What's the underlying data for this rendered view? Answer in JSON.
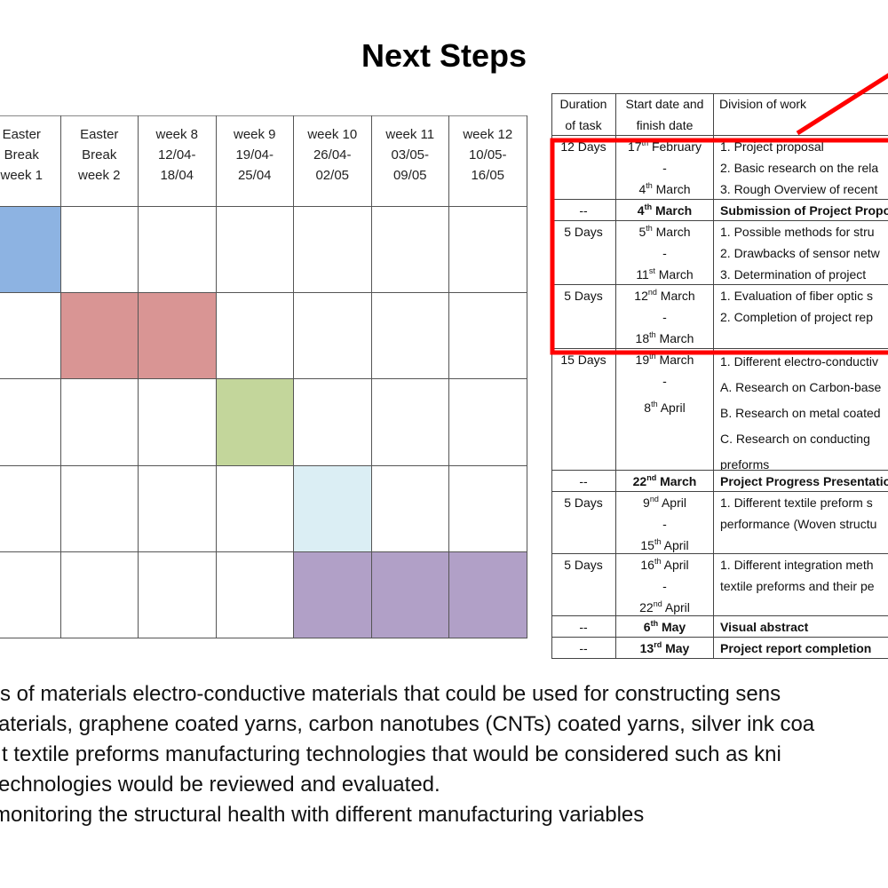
{
  "title": "Next Steps",
  "gantt": {
    "headers": [
      [
        "Easter",
        "Break",
        "week 1"
      ],
      [
        "Easter",
        "Break",
        "week 2"
      ],
      [
        "week 8",
        "12/04-",
        "18/04"
      ],
      [
        "week 9",
        "19/04-",
        "25/04"
      ],
      [
        "week 10",
        "26/04-",
        "02/05"
      ],
      [
        "week 11",
        "03/05-",
        "09/05"
      ],
      [
        "week 12",
        "10/05-",
        "16/05"
      ]
    ],
    "rows": [
      [
        "#8db3e2",
        null,
        null,
        null,
        null,
        null,
        null
      ],
      [
        null,
        "#d99594",
        "#d99594",
        null,
        null,
        null,
        null
      ],
      [
        null,
        null,
        null,
        "#c3d69b",
        null,
        null,
        null
      ],
      [
        null,
        null,
        null,
        null,
        "#dbeef4",
        null,
        null
      ],
      [
        null,
        null,
        null,
        null,
        "#b1a0c7",
        "#b1a0c7",
        "#b1a0c7"
      ]
    ]
  },
  "schedule": {
    "headers": [
      [
        "Duration",
        "of task"
      ],
      [
        "Start date and",
        "finish date"
      ],
      [
        "Division of work"
      ]
    ],
    "rows": [
      {
        "duration": "12 Days",
        "dates": [
          "17th February",
          "-",
          "4th March"
        ],
        "work": [
          "1. Project proposal",
          "2. Basic research on the rela",
          "3. Rough Overview of recent"
        ]
      },
      {
        "duration": "--",
        "dates": [
          "4th March"
        ],
        "work": [
          "Submission of Project Propo"
        ],
        "bold": true
      },
      {
        "duration": "5 Days",
        "dates": [
          "5th March",
          "-",
          "11st March"
        ],
        "work": [
          "1. Possible methods for stru",
          "2. Drawbacks of sensor netw",
          "3. Determination of project"
        ]
      },
      {
        "duration": "5 Days",
        "dates": [
          "12nd March",
          "-",
          "18th March"
        ],
        "work": [
          "1. Evaluation of fiber optic s",
          "2. Completion of project rep"
        ]
      },
      {
        "duration": "15 Days",
        "dates": [
          "19th March",
          "-",
          "8th April"
        ],
        "work": [
          "1. Different electro-conductiv",
          "A. Research on Carbon-base",
          "B. Research on metal coated",
          "C. Research on conducting",
          "preforms"
        ]
      },
      {
        "duration": "--",
        "dates": [
          "22nd March"
        ],
        "work": [
          "Project Progress Presentatio"
        ],
        "bold": true
      },
      {
        "duration": "5 Days",
        "dates": [
          "9nd April",
          "-",
          "15th April"
        ],
        "work": [
          "1. Different textile preform s",
          "performance (Woven structu"
        ]
      },
      {
        "duration": "5 Days",
        "dates": [
          "16th April",
          "-",
          "22nd April"
        ],
        "work": [
          "1. Different integration meth",
          "textile preforms and their pe"
        ]
      },
      {
        "duration": "--",
        "dates": [
          "6th May"
        ],
        "work": [
          "Visual abstract"
        ],
        "bold": true
      },
      {
        "duration": "--",
        "dates": [
          "13rd May"
        ],
        "work": [
          "Project report completion"
        ],
        "bold": true
      }
    ]
  },
  "body_lines": [
    "s of materials electro-conductive materials that could be used for constructing sens",
    "aterials, graphene coated yarns, carbon nanotubes (CNTs) coated yarns, silver ink coa",
    "t textile preforms manufacturing technologies that would be considered such as kni",
    "echnologies would be reviewed and evaluated.",
    "monitoring the structural health with different manufacturing variables"
  ]
}
